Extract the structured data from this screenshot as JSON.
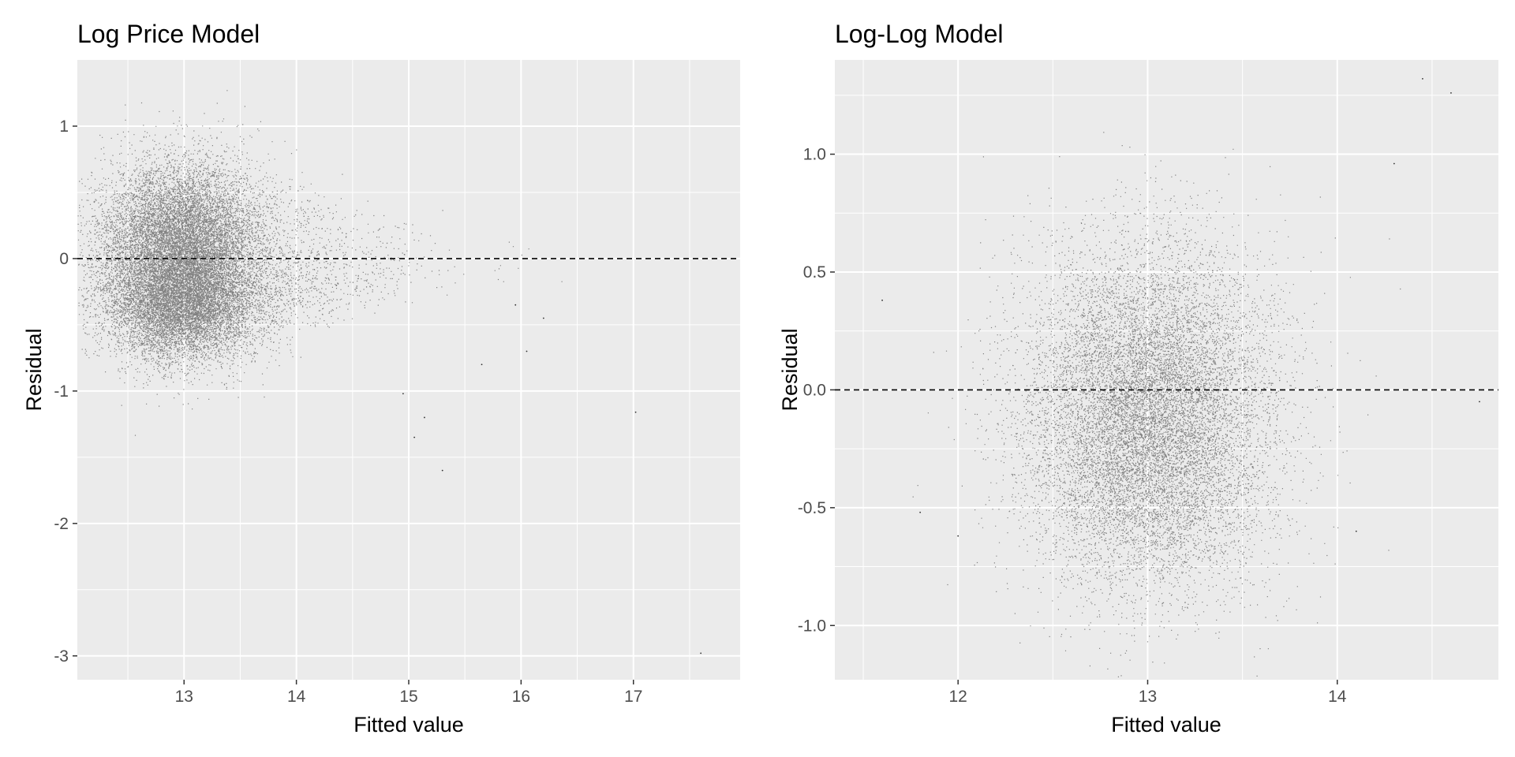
{
  "chart_data": [
    {
      "type": "scatter",
      "title": "Log Price Model",
      "xlabel": "Fitted value",
      "ylabel": "Residual",
      "xlim": [
        12.05,
        17.95
      ],
      "ylim": [
        -3.18,
        1.5
      ],
      "x_ticks": [
        13,
        14,
        15,
        16,
        17
      ],
      "y_ticks": [
        -3,
        -2,
        -1,
        0,
        1
      ],
      "x_tick_labels": [
        "13",
        "14",
        "15",
        "16",
        "17"
      ],
      "y_tick_labels": [
        "-3",
        "-2",
        "-1",
        "0",
        "1"
      ],
      "grid": true,
      "hline": 0,
      "point_alpha": 0.45,
      "approx_point_count": 20000,
      "cloud": {
        "center_x": 12.95,
        "spread_x": 0.35,
        "tail_x": 0.55,
        "clusters": [
          {
            "center_y": 0.18,
            "spread_y": 0.28,
            "weight": 0.5
          },
          {
            "center_y": -0.32,
            "spread_y": 0.22,
            "weight": 0.5
          }
        ]
      },
      "outliers": [
        {
          "x": 17.6,
          "y": -2.98
        },
        {
          "x": 17.02,
          "y": -1.16
        },
        {
          "x": 15.3,
          "y": -1.6
        },
        {
          "x": 15.14,
          "y": -1.2
        },
        {
          "x": 15.05,
          "y": -1.35
        },
        {
          "x": 14.95,
          "y": -1.02
        },
        {
          "x": 16.05,
          "y": -0.7
        },
        {
          "x": 15.65,
          "y": -0.8
        },
        {
          "x": 16.2,
          "y": -0.45
        },
        {
          "x": 15.95,
          "y": -0.35
        }
      ]
    },
    {
      "type": "scatter",
      "title": "Log-Log Model",
      "xlabel": "Fitted value",
      "ylabel": "Residual",
      "xlim": [
        11.35,
        14.85
      ],
      "ylim": [
        -1.23,
        1.4
      ],
      "x_ticks": [
        12,
        13,
        14
      ],
      "y_ticks": [
        -1.0,
        -0.5,
        0.0,
        0.5,
        1.0
      ],
      "x_tick_labels": [
        "12",
        "13",
        "14"
      ],
      "y_tick_labels": [
        "-1.0",
        "-0.5",
        "0.0",
        "0.5",
        "1.0"
      ],
      "grid": true,
      "hline": 0,
      "point_alpha": 0.45,
      "approx_point_count": 14000,
      "cloud": {
        "center_x": 13.0,
        "spread_x": 0.32,
        "clusters": [
          {
            "center_y": 0.12,
            "spread_y": 0.28,
            "weight": 0.45
          },
          {
            "center_y": -0.3,
            "spread_y": 0.28,
            "weight": 0.55
          }
        ]
      },
      "outliers": [
        {
          "x": 14.45,
          "y": 1.32
        },
        {
          "x": 14.6,
          "y": 1.26
        },
        {
          "x": 14.3,
          "y": 0.96
        },
        {
          "x": 11.6,
          "y": 0.38
        },
        {
          "x": 11.8,
          "y": -0.52
        },
        {
          "x": 14.1,
          "y": -0.6
        },
        {
          "x": 12.0,
          "y": -0.62
        },
        {
          "x": 14.75,
          "y": -0.05
        }
      ]
    }
  ]
}
